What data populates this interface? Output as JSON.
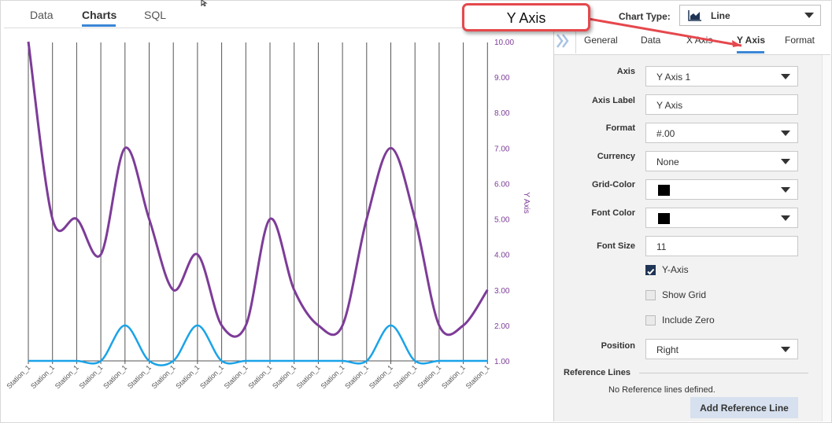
{
  "top_tabs": [
    "Data",
    "Charts",
    "SQL"
  ],
  "active_top_tab": "Charts",
  "chart_type": {
    "label": "Chart Type:",
    "value": "Line",
    "icon": "area-chart-icon"
  },
  "side_tabs": [
    "General",
    "Data",
    "X Axis",
    "Y Axis",
    "Format"
  ],
  "active_side_tab": "Y Axis",
  "callout": {
    "text": "Y Axis",
    "color": "#e5484d"
  },
  "props": {
    "axis": {
      "label": "Axis",
      "value": "Y Axis 1"
    },
    "axis_label": {
      "label": "Axis Label",
      "value": "Y Axis"
    },
    "format": {
      "label": "Format",
      "value": "#.00"
    },
    "currency": {
      "label": "Currency",
      "value": "None"
    },
    "grid_color": {
      "label": "Grid-Color",
      "value": "#000000"
    },
    "font_color": {
      "label": "Font Color",
      "value": "#000000"
    },
    "font_size": {
      "label": "Font Size",
      "value": "11"
    },
    "y_axis_check": {
      "label": "Y-Axis",
      "checked": true
    },
    "show_grid_check": {
      "label": "Show Grid",
      "checked": false
    },
    "include_zero_check": {
      "label": "Include Zero",
      "checked": false
    },
    "position": {
      "label": "Position",
      "value": "Right"
    }
  },
  "reference_lines": {
    "heading": "Reference Lines",
    "empty_text": "No Reference lines defined.",
    "add_button": "Add Reference Line"
  },
  "chart_data": {
    "type": "line",
    "categories": [
      "Station_1",
      "Station_1",
      "Station_1",
      "Station_1",
      "Station_1",
      "Station_1",
      "Station_1",
      "Station_1",
      "Station_1",
      "Station_1",
      "Station_1",
      "Station_1",
      "Station_1",
      "Station_1",
      "Station_1",
      "Station_1",
      "Station_1",
      "Station_1",
      "Station_1",
      "Station_1"
    ],
    "series": [
      {
        "color": "#7d3c98",
        "values": [
          10,
          5,
          5,
          4,
          7,
          5,
          3,
          4,
          2,
          2,
          5,
          3,
          2,
          2,
          5,
          7,
          5,
          2,
          2,
          3
        ]
      },
      {
        "color": "#1aa3e8",
        "values": [
          1,
          1,
          1,
          1,
          2,
          1,
          1,
          2,
          1,
          1,
          1,
          1,
          1,
          1,
          1,
          2,
          1,
          1,
          1,
          1
        ]
      }
    ],
    "y_ticks": [
      "1.00",
      "2.00",
      "3.00",
      "4.00",
      "5.00",
      "6.00",
      "7.00",
      "8.00",
      "9.00",
      "10.00"
    ],
    "ylabel": "Y Axis",
    "ylim": [
      1,
      10
    ],
    "y_axis_position": "right",
    "grid": "vertical",
    "tick_color": "#7d3c98"
  }
}
